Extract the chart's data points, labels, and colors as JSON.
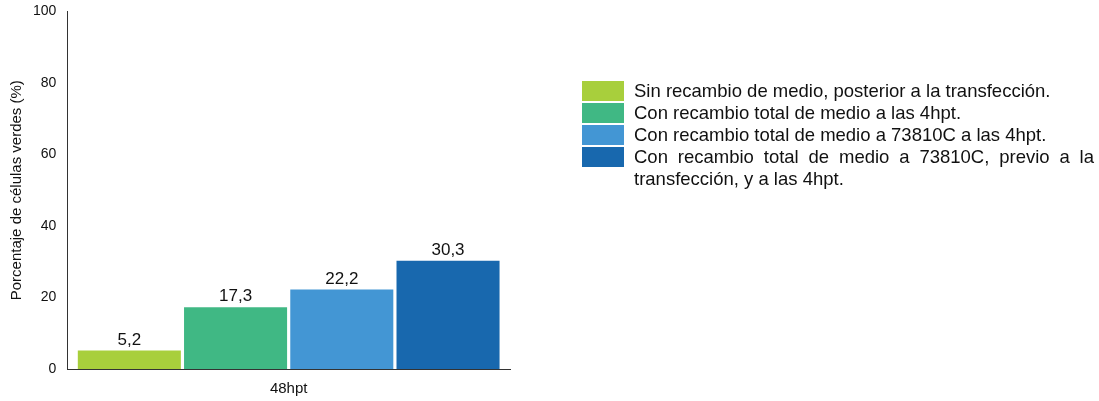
{
  "chart_data": {
    "type": "bar",
    "ylabel": "Porcentaje de células verdes (%)",
    "categories": [
      "48hpt"
    ],
    "series": [
      {
        "name": "Sin recambio de medio, posterior a la transfección.",
        "color": "#a8cf3c",
        "values": [
          5.2
        ],
        "value_labels": [
          "5,2"
        ]
      },
      {
        "name": "Con recambio total de medio a las 4hpt.",
        "color": "#40b884",
        "values": [
          17.3
        ],
        "value_labels": [
          "17,3"
        ]
      },
      {
        "name": "Con recambio total de medio a 73810C a las 4hpt.",
        "color": "#4396d4",
        "values": [
          22.2
        ],
        "value_labels": [
          "22,2"
        ]
      },
      {
        "name": "Con recambio total de medio a 73810C, previo a la transfección, y a las 4hpt.",
        "color": "#1868ae",
        "values": [
          30.3
        ],
        "value_labels": [
          "30,3"
        ]
      }
    ],
    "ylim": [
      0,
      100
    ],
    "yticks": [
      0,
      20,
      40,
      60,
      80,
      100
    ],
    "legend": "right"
  }
}
